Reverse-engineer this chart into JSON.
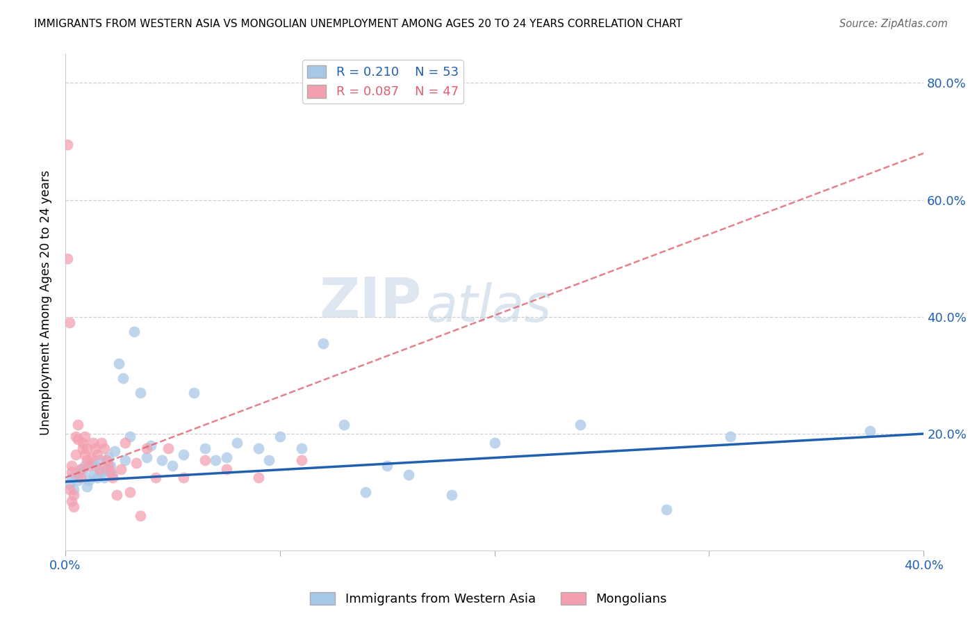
{
  "title": "IMMIGRANTS FROM WESTERN ASIA VS MONGOLIAN UNEMPLOYMENT AMONG AGES 20 TO 24 YEARS CORRELATION CHART",
  "source": "Source: ZipAtlas.com",
  "ylabel": "Unemployment Among Ages 20 to 24 years",
  "xlim": [
    0.0,
    0.4
  ],
  "ylim": [
    0.0,
    0.85
  ],
  "legend_blue_r": "R = 0.210",
  "legend_blue_n": "N = 53",
  "legend_pink_r": "R = 0.087",
  "legend_pink_n": "N = 47",
  "blue_color": "#a8c8e8",
  "pink_color": "#f4a0b0",
  "blue_line_color": "#2060b0",
  "pink_line_color": "#e06070",
  "watermark_zip": "ZIP",
  "watermark_atlas": "atlas",
  "blue_scatter_x": [
    0.002,
    0.003,
    0.004,
    0.005,
    0.006,
    0.007,
    0.008,
    0.009,
    0.01,
    0.011,
    0.012,
    0.013,
    0.014,
    0.015,
    0.016,
    0.017,
    0.018,
    0.019,
    0.02,
    0.021,
    0.022,
    0.023,
    0.025,
    0.027,
    0.028,
    0.03,
    0.032,
    0.035,
    0.038,
    0.04,
    0.045,
    0.05,
    0.055,
    0.06,
    0.065,
    0.07,
    0.075,
    0.08,
    0.09,
    0.095,
    0.1,
    0.11,
    0.12,
    0.13,
    0.14,
    0.15,
    0.16,
    0.18,
    0.2,
    0.24,
    0.28,
    0.31,
    0.375
  ],
  "blue_scatter_y": [
    0.115,
    0.125,
    0.105,
    0.13,
    0.12,
    0.14,
    0.135,
    0.145,
    0.11,
    0.12,
    0.15,
    0.13,
    0.145,
    0.125,
    0.155,
    0.135,
    0.125,
    0.14,
    0.16,
    0.145,
    0.13,
    0.17,
    0.32,
    0.295,
    0.155,
    0.195,
    0.375,
    0.27,
    0.16,
    0.18,
    0.155,
    0.145,
    0.165,
    0.27,
    0.175,
    0.155,
    0.16,
    0.185,
    0.175,
    0.155,
    0.195,
    0.175,
    0.355,
    0.215,
    0.1,
    0.145,
    0.13,
    0.095,
    0.185,
    0.215,
    0.07,
    0.195,
    0.205
  ],
  "pink_scatter_x": [
    0.001,
    0.001,
    0.002,
    0.002,
    0.003,
    0.003,
    0.003,
    0.004,
    0.004,
    0.005,
    0.005,
    0.006,
    0.006,
    0.007,
    0.007,
    0.008,
    0.008,
    0.009,
    0.009,
    0.01,
    0.01,
    0.011,
    0.012,
    0.013,
    0.014,
    0.015,
    0.016,
    0.017,
    0.018,
    0.019,
    0.02,
    0.021,
    0.022,
    0.024,
    0.026,
    0.028,
    0.03,
    0.033,
    0.035,
    0.038,
    0.042,
    0.048,
    0.055,
    0.065,
    0.075,
    0.09,
    0.11
  ],
  "pink_scatter_y": [
    0.695,
    0.5,
    0.39,
    0.105,
    0.145,
    0.135,
    0.085,
    0.095,
    0.075,
    0.195,
    0.165,
    0.215,
    0.19,
    0.14,
    0.125,
    0.185,
    0.175,
    0.195,
    0.165,
    0.175,
    0.155,
    0.145,
    0.16,
    0.185,
    0.175,
    0.165,
    0.14,
    0.185,
    0.175,
    0.155,
    0.145,
    0.135,
    0.125,
    0.095,
    0.14,
    0.185,
    0.1,
    0.15,
    0.06,
    0.175,
    0.125,
    0.175,
    0.125,
    0.155,
    0.14,
    0.125,
    0.155
  ],
  "blue_line_x0": 0.0,
  "blue_line_y0": 0.118,
  "blue_line_x1": 0.4,
  "blue_line_y1": 0.2,
  "pink_line_x0": 0.0,
  "pink_line_y0": 0.125,
  "pink_line_x1": 0.4,
  "pink_line_y1": 0.68
}
